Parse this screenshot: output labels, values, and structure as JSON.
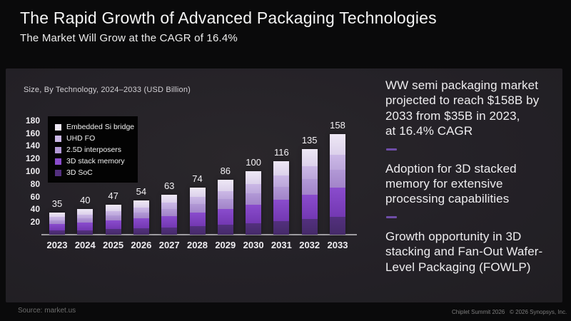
{
  "header": {
    "title": "The Rapid Growth of Advanced Packaging Technologies",
    "subtitle": "The Market Will Grow at the CAGR of 16.4%"
  },
  "chart_data": {
    "type": "bar",
    "stacked": true,
    "title": "Size, By Technology, 2024–2033 (USD Billion)",
    "xlabel": "",
    "ylabel": "",
    "ylim": [
      0,
      180
    ],
    "yticks": [
      20,
      40,
      60,
      80,
      100,
      120,
      140,
      160,
      180
    ],
    "grid": false,
    "legend_position": "upper-left",
    "categories": [
      "2023",
      "2024",
      "2025",
      "2026",
      "2027",
      "2028",
      "2029",
      "2030",
      "2031",
      "2032",
      "2033"
    ],
    "totals": [
      35,
      40,
      47,
      54,
      63,
      74,
      86,
      100,
      116,
      135,
      158
    ],
    "series": [
      {
        "name": "3D SoC",
        "color": "#53307e",
        "color2": "#452a69",
        "values": [
          6.3,
          7.2,
          8.5,
          9.7,
          11.3,
          13.3,
          15.5,
          18,
          20.9,
          24.3,
          28.4
        ]
      },
      {
        "name": "3D stack memory",
        "color": "#8a4ccd",
        "color2": "#7338b2",
        "values": [
          10.2,
          11.6,
          13.6,
          15.7,
          18.3,
          21.5,
          24.9,
          29,
          33.6,
          39.2,
          45.8
        ]
      },
      {
        "name": "2.5D interposers",
        "color": "#b299d6",
        "color2": "#a284c9",
        "values": [
          6.3,
          7.2,
          8.5,
          9.7,
          11.3,
          13.3,
          15.5,
          18,
          20.9,
          24.3,
          28.4
        ]
      },
      {
        "name": "UHD FO",
        "color": "#cbb8e6",
        "color2": "#bca7db",
        "values": [
          5.2,
          6.0,
          7.1,
          8.1,
          9.5,
          11.1,
          12.9,
          15,
          17.4,
          20.3,
          23.7
        ]
      },
      {
        "name": "Embedded Si bridge",
        "color": "#eee8f5",
        "color2": "#dcd1eb",
        "values": [
          7.0,
          8.0,
          9.4,
          10.8,
          12.6,
          14.8,
          17.2,
          20,
          23.2,
          27.0,
          31.6
        ]
      }
    ]
  },
  "right_panel": {
    "block1": "WW semi packaging market\nprojected to reach $158B by\n2033 from $35B in 2023,\nat 16.4% CAGR",
    "block2": "Adoption for 3D stacked\nmemory for extensive\nprocessing capabilities",
    "block3": "Growth opportunity in 3D\nstacking and Fan-Out Wafer-\nLevel Packaging (FOWLP)",
    "accent_color": "#6f4da8"
  },
  "footer": {
    "source": "Source: market.us",
    "event": "Chiplet Summit 2026",
    "copyright": "© 2026 Synopsys, Inc."
  }
}
